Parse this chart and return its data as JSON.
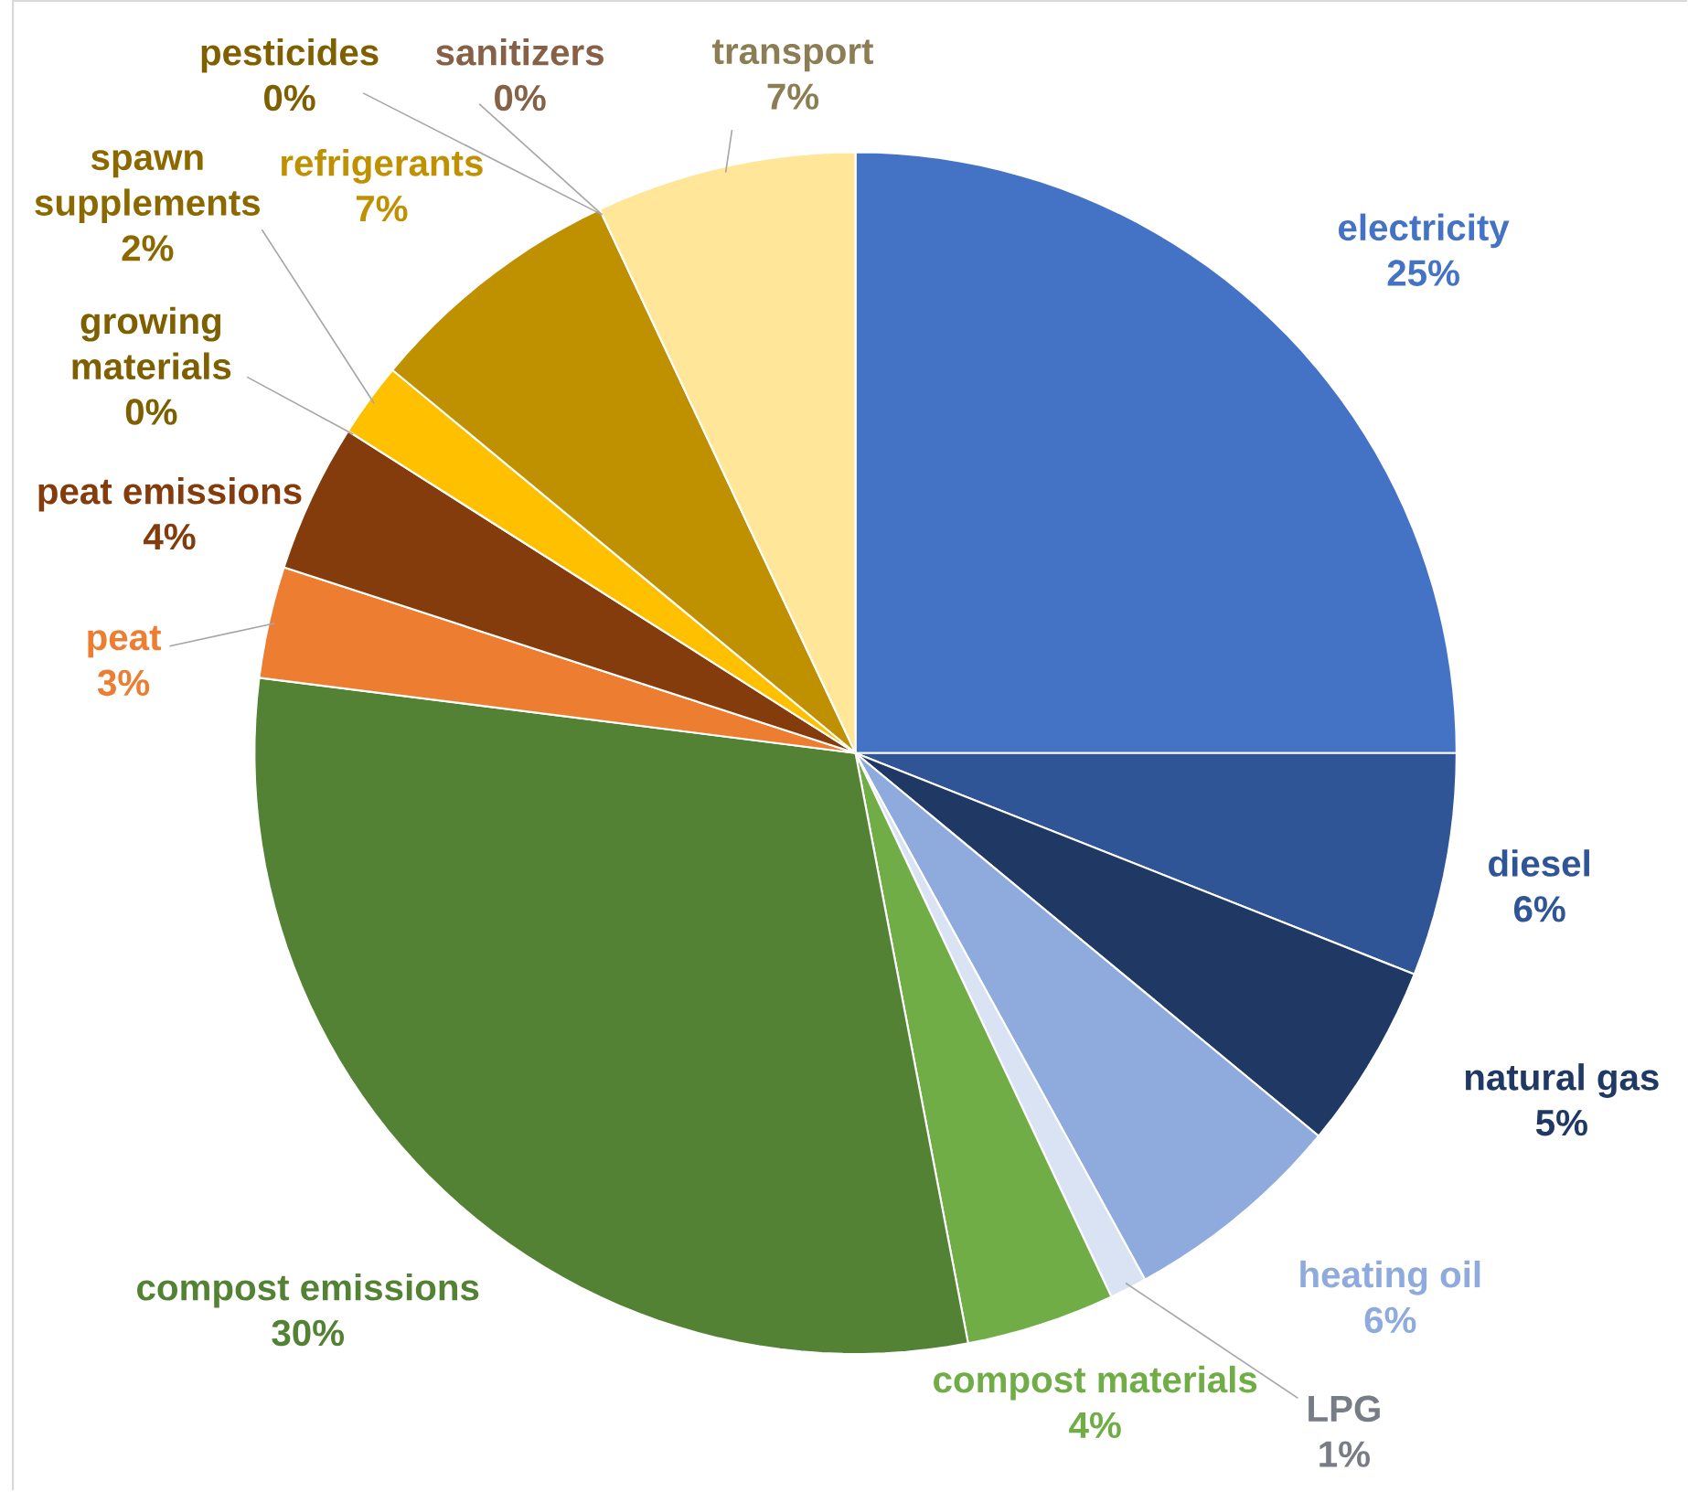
{
  "chart_data": {
    "type": "pie",
    "categories": [
      "electricity",
      "diesel",
      "natural gas",
      "heating oil",
      "LPG",
      "compost materials",
      "compost emissions",
      "peat",
      "peat emissions",
      "growing materials",
      "spawn supplements",
      "refrigerants",
      "pesticides",
      "sanitizers",
      "transport"
    ],
    "values": [
      25,
      6,
      5,
      6,
      1,
      4,
      30,
      3,
      4,
      0,
      2,
      7,
      0,
      0,
      7
    ],
    "value_labels": [
      "25%",
      "6%",
      "5%",
      "6%",
      "1%",
      "4%",
      "30%",
      "3%",
      "4%",
      "0%",
      "2%",
      "7%",
      "0%",
      "0%",
      "7%"
    ],
    "colors": [
      "#4472c4",
      "#2f5597",
      "#203864",
      "#8faadc",
      "#dae3f3",
      "#70ad47",
      "#548235",
      "#ed7d31",
      "#843c0c",
      "#7f6000",
      "#ffc000",
      "#bf9000",
      "#7f6000",
      "#f4b183",
      "#ffe699"
    ]
  }
}
